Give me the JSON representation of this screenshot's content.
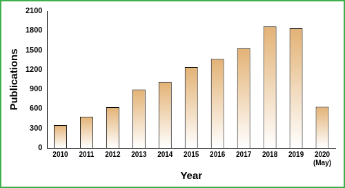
{
  "chart_data": {
    "type": "bar",
    "categories": [
      "2010",
      "2011",
      "2012",
      "2013",
      "2014",
      "2015",
      "2016",
      "2017",
      "2018",
      "2019",
      "2020\n(May)"
    ],
    "values": [
      350,
      480,
      625,
      895,
      1010,
      1240,
      1365,
      1530,
      1865,
      1835,
      630
    ],
    "color": "#e3b275",
    "x_label": "Year",
    "y_label": "Publications",
    "ylim": [
      0,
      2100
    ],
    "yticks": [
      0,
      300,
      600,
      900,
      1200,
      1500,
      1800,
      2100
    ],
    "grid": false
  }
}
